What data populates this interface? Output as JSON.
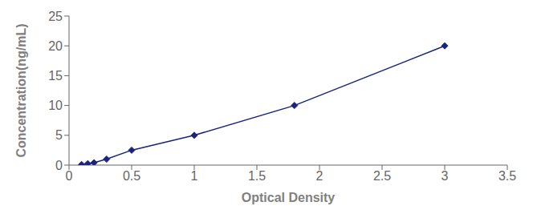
{
  "chart_data": {
    "type": "line",
    "x": [
      0.1,
      0.15,
      0.2,
      0.3,
      0.5,
      1.0,
      1.8,
      3.0
    ],
    "values": [
      0.1,
      0.25,
      0.4,
      1.0,
      2.5,
      5.0,
      10.0,
      20.0
    ],
    "color": "#1A237E",
    "marker": "diamond",
    "xlabel": "Optical Density",
    "ylabel": "Concentration(ng/mL)",
    "xlim": [
      0,
      3.5
    ],
    "ylim": [
      0,
      25
    ],
    "xticks": [
      0,
      0.5,
      1,
      1.5,
      2,
      2.5,
      3,
      3.5
    ],
    "yticks": [
      0,
      5,
      10,
      15,
      20,
      25
    ],
    "grid": false
  }
}
